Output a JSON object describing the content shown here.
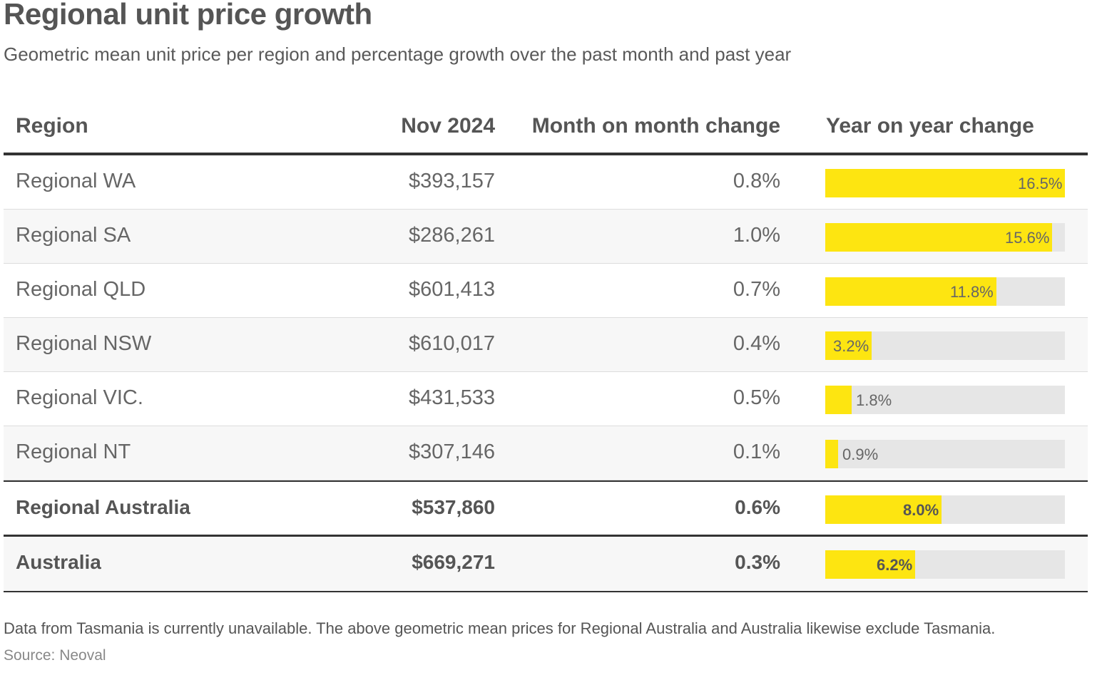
{
  "title": "Regional unit price growth",
  "subtitle": "Geometric mean unit price per region and percentage growth over the past month and past year",
  "note": "Data from Tasmania is currently unavailable. The above geometric mean prices for Regional Australia and Australia likewise exclude Tasmania.",
  "source": "Source: Neoval",
  "colors": {
    "bar": "#fde511",
    "track": "#e6e6e6"
  },
  "chart_data": {
    "type": "table",
    "columns": [
      "Region",
      "Nov 2024",
      "Month on month change",
      "Year on year change"
    ],
    "yoy_max": 16.5,
    "rows": [
      {
        "region": "Regional WA",
        "price": "$393,157",
        "mom": "0.8%",
        "yoy": 16.5,
        "yoy_label": "16.5%"
      },
      {
        "region": "Regional SA",
        "price": "$286,261",
        "mom": "1.0%",
        "yoy": 15.6,
        "yoy_label": "15.6%"
      },
      {
        "region": "Regional QLD",
        "price": "$601,413",
        "mom": "0.7%",
        "yoy": 11.8,
        "yoy_label": "11.8%"
      },
      {
        "region": "Regional NSW",
        "price": "$610,017",
        "mom": "0.4%",
        "yoy": 3.2,
        "yoy_label": "3.2%"
      },
      {
        "region": "Regional VIC.",
        "price": "$431,533",
        "mom": "0.5%",
        "yoy": 1.8,
        "yoy_label": "1.8%"
      },
      {
        "region": "Regional NT",
        "price": "$307,146",
        "mom": "0.1%",
        "yoy": 0.9,
        "yoy_label": "0.9%"
      },
      {
        "region": "Regional Australia",
        "price": "$537,860",
        "mom": "0.6%",
        "yoy": 8.0,
        "yoy_label": "8.0%"
      },
      {
        "region": "Australia",
        "price": "$669,271",
        "mom": "0.3%",
        "yoy": 6.2,
        "yoy_label": "6.2%"
      }
    ]
  }
}
